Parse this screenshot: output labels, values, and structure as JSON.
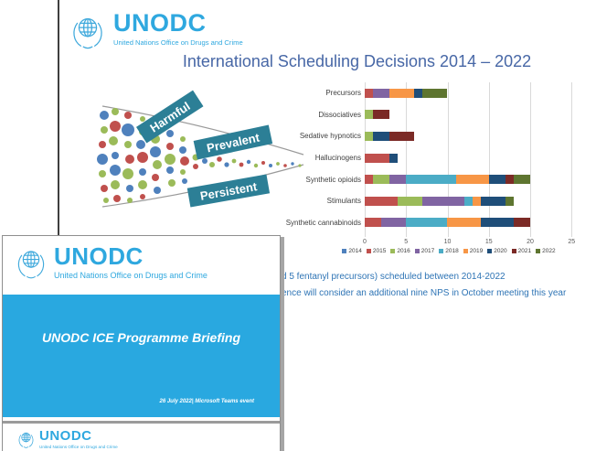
{
  "back_slide": {
    "logo": {
      "name": "UNODC",
      "tagline": "United Nations Office on Drugs and Crime"
    },
    "title": "International Scheduling Decisions 2014 – 2022",
    "funnel": {
      "labels": {
        "top": "Harmful",
        "middle": "Prevalent",
        "bottom": "Persistent"
      },
      "label_color": "#2C7F96",
      "dot_colors": [
        "#4F81BD",
        "#C0504D",
        "#9BBB59"
      ]
    },
    "notes": {
      "line1": "d 5 fentanyl precursors) scheduled between 2014-2022",
      "line2": "ence will consider an additional nine NPS in October meeting this year",
      "color": "#2E74B5"
    }
  },
  "chart_data": {
    "type": "bar",
    "orientation": "horizontal",
    "stacked": true,
    "title": "International Scheduling Decisions 2014 – 2022",
    "categories": [
      "Precursors",
      "Dissociatives",
      "Sedative hypnotics",
      "Hallucinogens",
      "Synthetic opioids",
      "Stimulants",
      "Synthetic cannabinoids"
    ],
    "series": [
      {
        "name": "2014",
        "color": "#4F81BD",
        "values": [
          0,
          0,
          0,
          0,
          0,
          0,
          0
        ]
      },
      {
        "name": "2015",
        "color": "#C0504D",
        "values": [
          1,
          0,
          0,
          3,
          1,
          4,
          2
        ]
      },
      {
        "name": "2016",
        "color": "#9BBB59",
        "values": [
          0,
          1,
          1,
          0,
          2,
          3,
          0
        ]
      },
      {
        "name": "2017",
        "color": "#8064A2",
        "values": [
          2,
          0,
          0,
          0,
          2,
          5,
          3
        ]
      },
      {
        "name": "2018",
        "color": "#4BACC6",
        "values": [
          0,
          0,
          0,
          0,
          6,
          1,
          5
        ]
      },
      {
        "name": "2019",
        "color": "#F79646",
        "values": [
          3,
          0,
          0,
          0,
          4,
          1,
          4
        ]
      },
      {
        "name": "2020",
        "color": "#1F4E79",
        "values": [
          1,
          0,
          2,
          1,
          2,
          3,
          4
        ]
      },
      {
        "name": "2021",
        "color": "#7B2A26",
        "values": [
          0,
          2,
          3,
          0,
          1,
          0,
          2
        ]
      },
      {
        "name": "2022",
        "color": "#5E7530",
        "values": [
          3,
          0,
          0,
          0,
          2,
          1,
          0
        ]
      }
    ],
    "xlim": [
      0,
      25
    ],
    "xticks": [
      0,
      5,
      10,
      15,
      20,
      25
    ],
    "grid": true,
    "legend_position": "bottom"
  },
  "front_window": {
    "logo": {
      "name": "UNODC",
      "tagline": "United Nations Office on Drugs and Crime"
    },
    "band_color": "#29A8E0",
    "slide_title": "UNODC ICE Programme Briefing",
    "slide_footer": "26 July 2022| Microsoft Teams event",
    "next_slide_logo": {
      "name": "UNODC",
      "tagline": "United Nations Office on Drugs and Crime"
    }
  }
}
